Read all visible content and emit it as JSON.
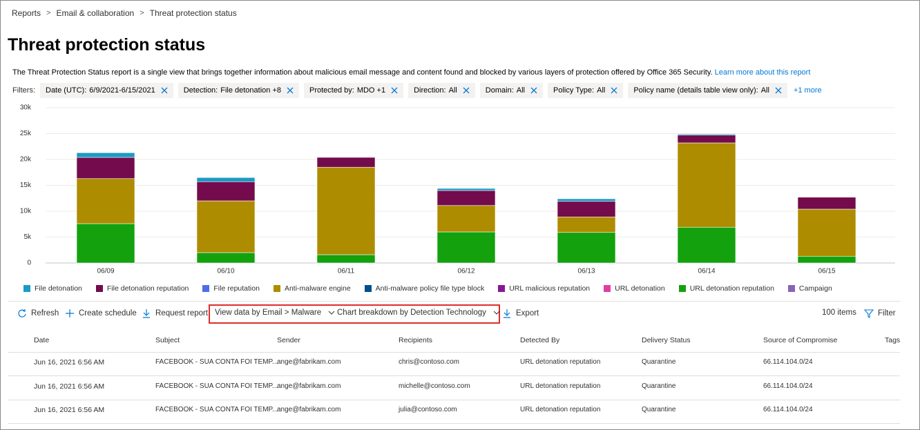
{
  "breadcrumbs": [
    "Reports",
    "Email & collaboration",
    "Threat protection status"
  ],
  "header": {
    "title": "Threat protection status",
    "description": "The Threat Protection Status report is a single view that brings together information about malicious email message and content found and blocked by various layers of protection offered by Office 365 Security.",
    "link": "Learn more about this report"
  },
  "filters": {
    "label": "Filters:",
    "chips": [
      {
        "label": "Date (UTC):",
        "value": "6/9/2021-6/15/2021"
      },
      {
        "label": "Detection:",
        "value": "File detonation +8"
      },
      {
        "label": "Protected by:",
        "value": "MDO +1"
      },
      {
        "label": "Direction:",
        "value": "All"
      },
      {
        "label": "Domain:",
        "value": "All"
      },
      {
        "label": "Policy Type:",
        "value": "All"
      },
      {
        "label": "Policy name (details table view only):",
        "value": "All"
      }
    ],
    "more": "+1 more"
  },
  "chart_data": {
    "type": "stacked_bar",
    "categories": [
      "06/09",
      "06/10",
      "06/11",
      "06/12",
      "06/13",
      "06/14",
      "06/15"
    ],
    "ylim": [
      0,
      30000
    ],
    "yticks": [
      0,
      {
        "value": 5000,
        "label": "5k"
      },
      {
        "value": 10000,
        "label": "10k"
      },
      {
        "value": 15000,
        "label": "15k"
      },
      {
        "value": 20000,
        "label": "20k"
      },
      {
        "value": 25000,
        "label": "25k"
      },
      {
        "value": 30000,
        "label": "30k"
      }
    ],
    "grid": true,
    "legend": "bottom",
    "series": [
      {
        "name": "File detonation",
        "color": "#1a9bc4",
        "values": [
          900,
          800,
          0,
          400,
          500,
          200,
          0
        ]
      },
      {
        "name": "File detonation reputation",
        "color": "#730b4d",
        "values": [
          4100,
          3700,
          1900,
          2900,
          3000,
          1500,
          2300
        ]
      },
      {
        "name": "File reputation",
        "color": "#4f6bed",
        "values": [
          0,
          0,
          0,
          0,
          0,
          0,
          0
        ]
      },
      {
        "name": "Anti-malware engine",
        "color": "#ae8c00",
        "values": [
          8700,
          10000,
          16900,
          5100,
          3000,
          16300,
          9100
        ]
      },
      {
        "name": "Anti-malware policy file type block",
        "color": "#004e8c",
        "values": [
          0,
          0,
          0,
          0,
          0,
          0,
          0
        ]
      },
      {
        "name": "URL malicious reputation",
        "color": "#881798",
        "values": [
          0,
          0,
          0,
          0,
          0,
          0,
          0
        ]
      },
      {
        "name": "URL detonation",
        "color": "#e43ba6",
        "values": [
          0,
          0,
          0,
          0,
          0,
          0,
          0
        ]
      },
      {
        "name": "URL detonation reputation",
        "color": "#13a10e",
        "values": [
          7600,
          2000,
          1600,
          6000,
          5900,
          6900,
          1300
        ]
      },
      {
        "name": "Campaign",
        "color": "#8764b8",
        "values": [
          0,
          0,
          0,
          0,
          0,
          0,
          0
        ]
      }
    ]
  },
  "toolbar": {
    "refresh": "Refresh",
    "create_schedule": "Create schedule",
    "request_report": "Request report",
    "view_data": "View data by Email > Malware",
    "breakdown": "Chart breakdown by Detection Technology",
    "export": "Export",
    "items": "100 items",
    "filter": "Filter"
  },
  "table": {
    "columns": [
      "Date",
      "Subject",
      "Sender",
      "Recipients",
      "Detected By",
      "Delivery Status",
      "Source of Compromise",
      "Tags"
    ],
    "rows": [
      [
        "Jun 16, 2021 6:56 AM",
        "FACEBOOK - SUA CONTA FOI TEMP...",
        "ange@fabrikam.com",
        "chris@contoso.com",
        "URL detonation reputation",
        "Quarantine",
        "66.114.104.0/24"
      ],
      [
        "Jun 16, 2021 6:56 AM",
        "FACEBOOK - SUA CONTA FOI TEMP...",
        "ange@fabrikam.com",
        "michelle@contoso.com",
        "URL detonation reputation",
        "Quarantine",
        "66.114.104.0/24"
      ],
      [
        "Jun 16, 2021 6:56 AM",
        "FACEBOOK - SUA CONTA FOI TEMP...",
        "ange@fabrikam.com",
        "julia@contoso.com",
        "URL detonation reputation",
        "Quarantine",
        "66.114.104.0/24"
      ]
    ]
  }
}
